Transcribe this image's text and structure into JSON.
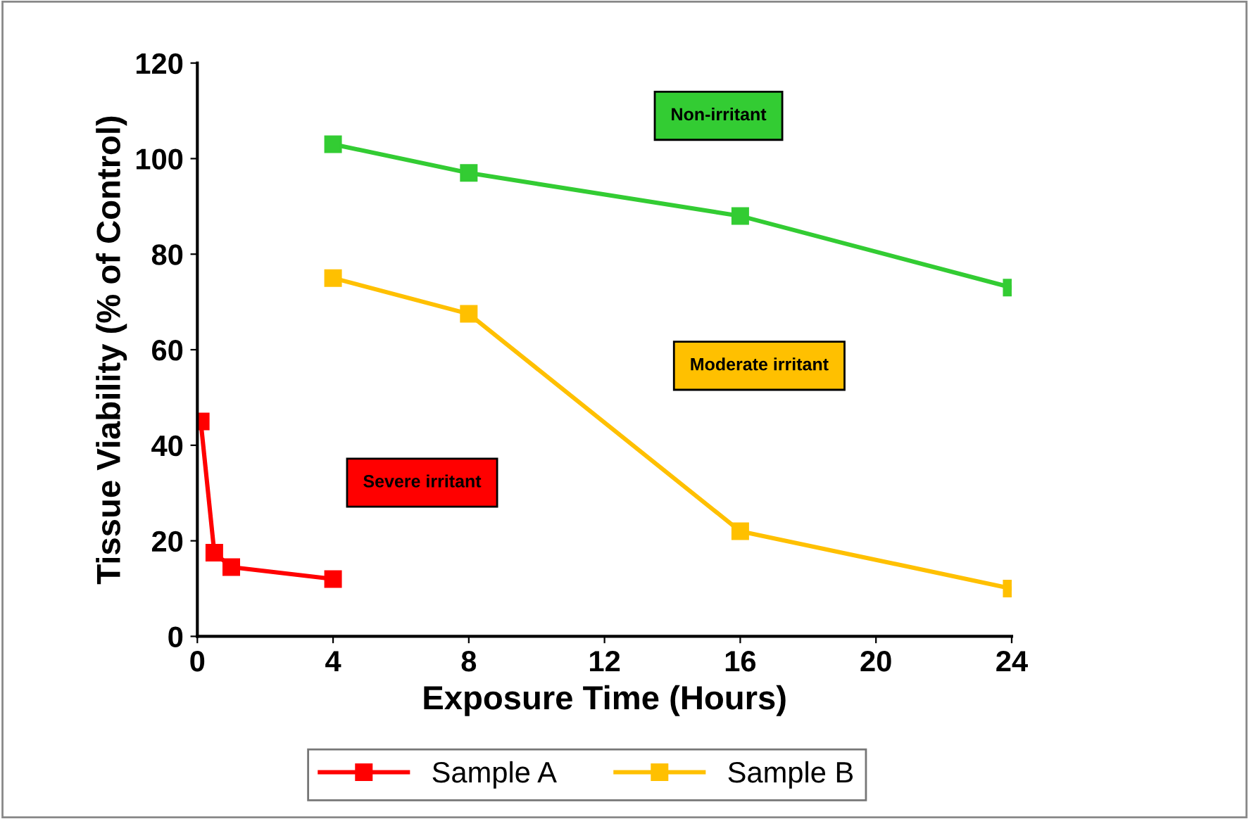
{
  "chart_data": {
    "type": "line",
    "xlabel": "Exposure Time (Hours)",
    "ylabel": "Tissue Viability (% of Control)",
    "xlim": [
      0,
      24
    ],
    "xticks": [
      0,
      4,
      8,
      12,
      16,
      20,
      24
    ],
    "ylim": [
      0,
      120
    ],
    "yticks": [
      0,
      20,
      40,
      60,
      80,
      100,
      120
    ],
    "series": [
      {
        "name": "Sample A",
        "color": "#ff0000",
        "x": [
          0.1,
          0.5,
          1,
          4
        ],
        "values": [
          45,
          17.5,
          14.5,
          12
        ]
      },
      {
        "name": "Sample B",
        "color": "#ffc000",
        "x": [
          4,
          8,
          16,
          24
        ],
        "values": [
          75,
          67.5,
          22,
          10
        ]
      },
      {
        "color": "#33cc33",
        "x": [
          4,
          8,
          16,
          24
        ],
        "values": [
          103,
          97,
          88,
          73
        ]
      }
    ],
    "annotations": [
      "Non-irritant",
      "Moderate irritant",
      "Severe irritant"
    ],
    "marker": "square",
    "line_style": "solid",
    "grid": false,
    "legend": "bottom"
  }
}
